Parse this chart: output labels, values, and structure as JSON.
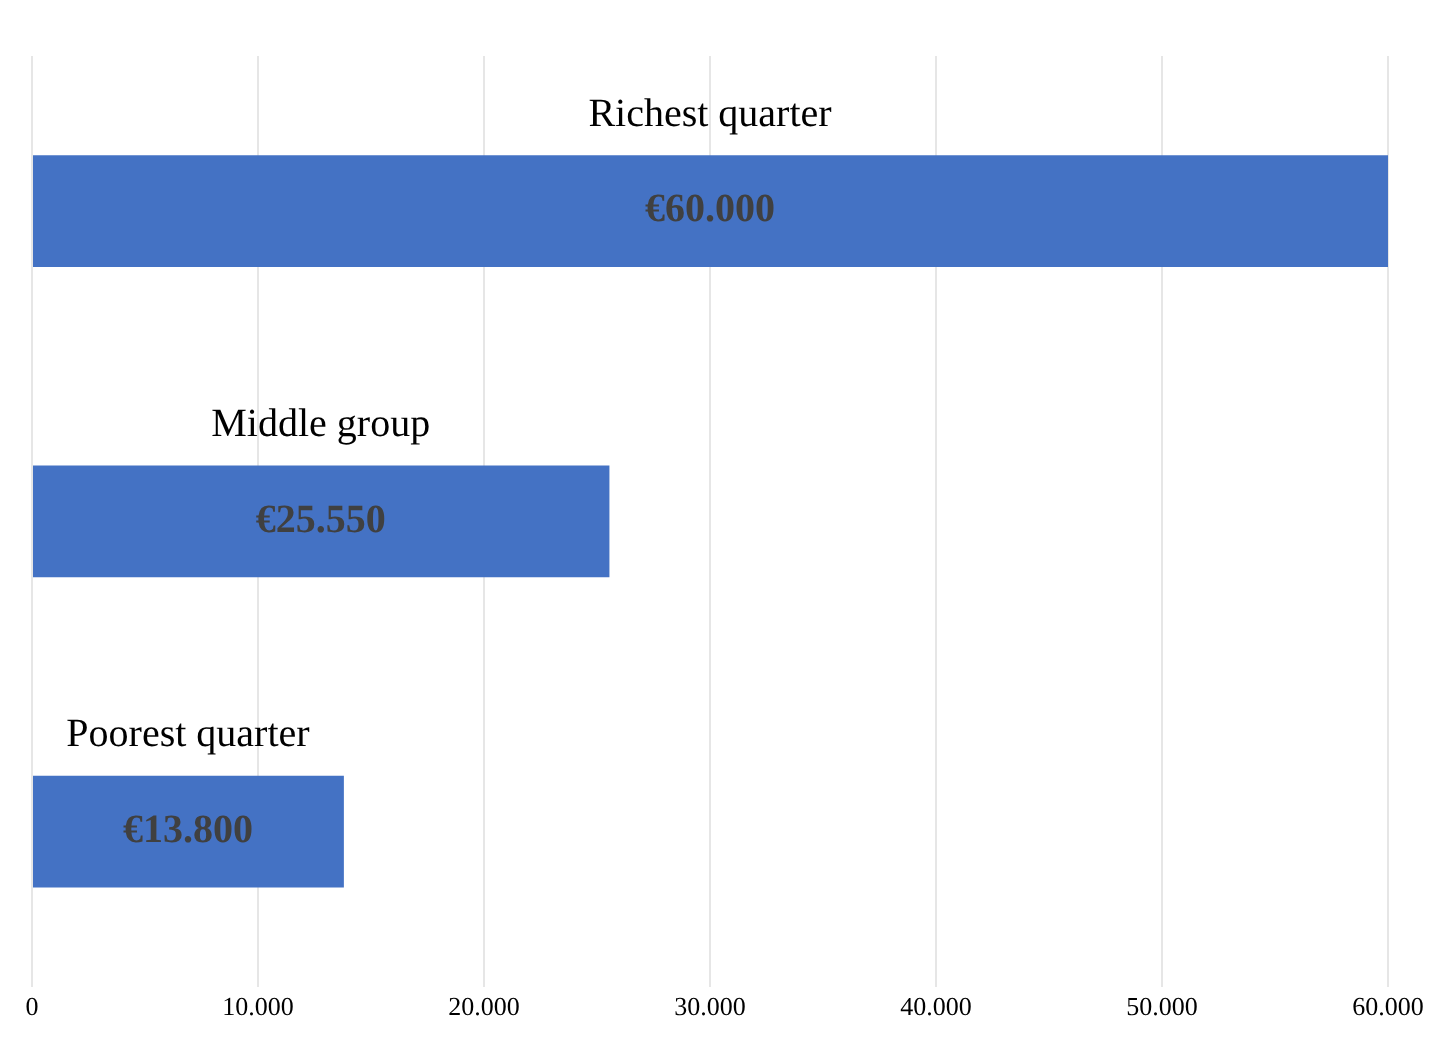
{
  "chart_data": {
    "type": "bar",
    "orientation": "horizontal",
    "categories": [
      "Richest quarter",
      "Middle group",
      "Poorest quarter"
    ],
    "values": [
      60000,
      25550,
      13800
    ],
    "color": "#4472c4",
    "value_labels": [
      "€60.000",
      "€25.550",
      "€13.800"
    ],
    "xlim": [
      0,
      60000
    ],
    "xticks": [
      0,
      {
        "value": 10000,
        "label": "10.000"
      },
      {
        "value": 20000,
        "label": "20.000"
      },
      {
        "value": 30000,
        "label": "30.000"
      },
      {
        "value": 40000,
        "label": "40.000"
      },
      {
        "value": 50000,
        "label": "50.000"
      },
      {
        "value": 60000,
        "label": "60.000"
      }
    ],
    "grid": "x",
    "tick_labels": "x",
    "legend": false
  }
}
